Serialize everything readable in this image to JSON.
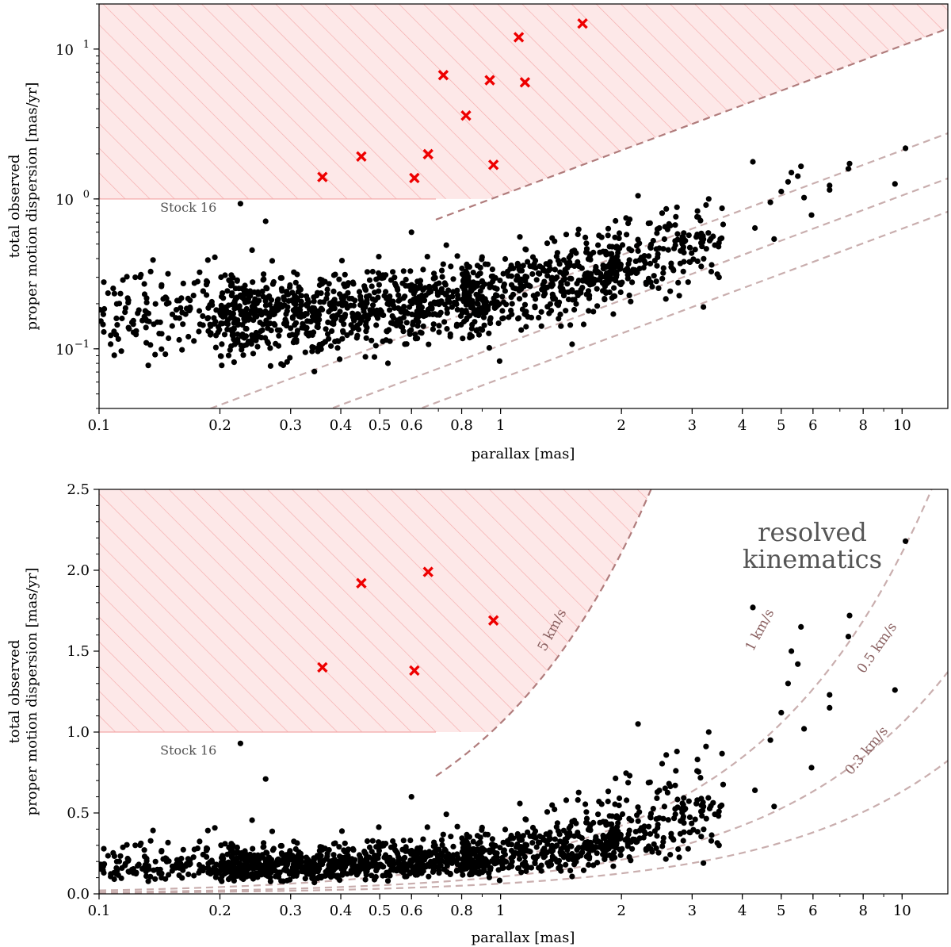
{
  "colors": {
    "hatch_fill": "#fde8e8",
    "hatch_stroke": "#f4a9a9",
    "curve": "#c9aeae",
    "boundary": "#b07c7c",
    "curve_text": "#8a6060",
    "marker_x": "#ee0000",
    "point": "#000000",
    "label_gray": "#555555"
  },
  "chart_data": [
    {
      "type": "scatter",
      "panel": "top",
      "xscale": "log",
      "yscale": "log",
      "xlim": [
        0.1,
        13
      ],
      "ylim": [
        0.04,
        20
      ],
      "xlabel": "parallax [mas]",
      "ylabel_line1": "total observed",
      "ylabel_line2": "proper motion dispersion [mas/yr]",
      "xticks": [
        {
          "v": 0.1,
          "t": "0.1"
        },
        {
          "v": 0.2,
          "t": "0.2"
        },
        {
          "v": 0.3,
          "t": "0.3"
        },
        {
          "v": 0.4,
          "t": "0.4"
        },
        {
          "v": 0.5,
          "t": "0.5"
        },
        {
          "v": 0.6,
          "t": "0.6"
        },
        {
          "v": 0.8,
          "t": "0.8"
        },
        {
          "v": 1,
          "t": "1"
        },
        {
          "v": 2,
          "t": "2"
        },
        {
          "v": 3,
          "t": "3"
        },
        {
          "v": 4,
          "t": "4"
        },
        {
          "v": 5,
          "t": "5"
        },
        {
          "v": 6,
          "t": "6"
        },
        {
          "v": 8,
          "t": "8"
        },
        {
          "v": 10,
          "t": "10"
        }
      ],
      "ytick_base": "10",
      "yticks": [
        {
          "v": 0.1,
          "exp": "−1"
        },
        {
          "v": 1,
          "exp": "0"
        },
        {
          "v": 10,
          "exp": "1"
        }
      ],
      "annotation": {
        "text": "Stock 16",
        "x": 0.142,
        "y": 0.82
      },
      "excluded_region": {
        "y_min": 1.0,
        "knee_parallax": 0.69,
        "velocity_kms": 5
      },
      "velocity_curves_kms": [
        1,
        0.5,
        0.3
      ],
      "outliers": [
        {
          "x": 0.36,
          "y": 1.4
        },
        {
          "x": 0.45,
          "y": 1.92
        },
        {
          "x": 0.61,
          "y": 1.38
        },
        {
          "x": 0.66,
          "y": 1.99
        },
        {
          "x": 0.72,
          "y": 6.7
        },
        {
          "x": 0.82,
          "y": 3.6
        },
        {
          "x": 0.94,
          "y": 6.2
        },
        {
          "x": 0.96,
          "y": 1.69
        },
        {
          "x": 1.11,
          "y": 12.0
        },
        {
          "x": 1.15,
          "y": 6.0
        },
        {
          "x": 1.6,
          "y": 14.8
        }
      ],
      "highlight_points": [
        {
          "x": 0.225,
          "y": 0.93
        },
        {
          "x": 0.26,
          "y": 0.71
        },
        {
          "x": 4.25,
          "y": 1.77
        },
        {
          "x": 5.3,
          "y": 1.5
        },
        {
          "x": 5.5,
          "y": 1.42
        },
        {
          "x": 5.6,
          "y": 1.65
        },
        {
          "x": 5.2,
          "y": 1.3
        },
        {
          "x": 7.4,
          "y": 1.72
        },
        {
          "x": 7.35,
          "y": 1.59
        },
        {
          "x": 10.2,
          "y": 2.18
        },
        {
          "x": 9.6,
          "y": 1.26
        },
        {
          "x": 6.6,
          "y": 1.23
        },
        {
          "x": 6.6,
          "y": 1.15
        },
        {
          "x": 5.0,
          "y": 1.12
        },
        {
          "x": 4.7,
          "y": 0.95
        },
        {
          "x": 5.7,
          "y": 1.02
        },
        {
          "x": 4.3,
          "y": 0.64
        },
        {
          "x": 4.8,
          "y": 0.54
        },
        {
          "x": 5.95,
          "y": 0.78
        },
        {
          "x": 3.3,
          "y": 1.0
        },
        {
          "x": 2.2,
          "y": 1.05
        },
        {
          "x": 2.75,
          "y": 0.88
        },
        {
          "x": 0.6,
          "y": 0.6
        },
        {
          "x": 3.2,
          "y": 0.19
        },
        {
          "x": 3.5,
          "y": 0.3
        }
      ],
      "bulk_points": {
        "count": 1500,
        "x_range": [
          0.1,
          3.6
        ],
        "median_at_low_parallax": 0.17,
        "note": "dense cloud, dispersion rising with parallax"
      }
    },
    {
      "type": "scatter",
      "panel": "bottom",
      "xscale": "log",
      "yscale": "linear",
      "xlim": [
        0.1,
        13
      ],
      "ylim": [
        0,
        2.5
      ],
      "xlabel": "parallax [mas]",
      "ylabel_line1": "total observed",
      "ylabel_line2": "proper motion dispersion [mas/yr]",
      "yticks": [
        {
          "v": 0.0,
          "t": "0.0"
        },
        {
          "v": 0.5,
          "t": "0.5"
        },
        {
          "v": 1.0,
          "t": "1.0"
        },
        {
          "v": 1.5,
          "t": "1.5"
        },
        {
          "v": 2.0,
          "t": "2.0"
        },
        {
          "v": 2.5,
          "t": "2.5"
        }
      ],
      "region_label_line1": "resolved",
      "region_label_line2": "kinematics",
      "curve_labels": [
        {
          "text": "5 km/s",
          "kms": 5
        },
        {
          "text": "1 km/s",
          "kms": 1
        },
        {
          "text": "0.5 km/s",
          "kms": 0.5
        },
        {
          "text": "0.3 km/s",
          "kms": 0.3
        }
      ],
      "annotation": {
        "text": "Stock 16",
        "x": 0.142,
        "y": 0.86
      }
    }
  ]
}
